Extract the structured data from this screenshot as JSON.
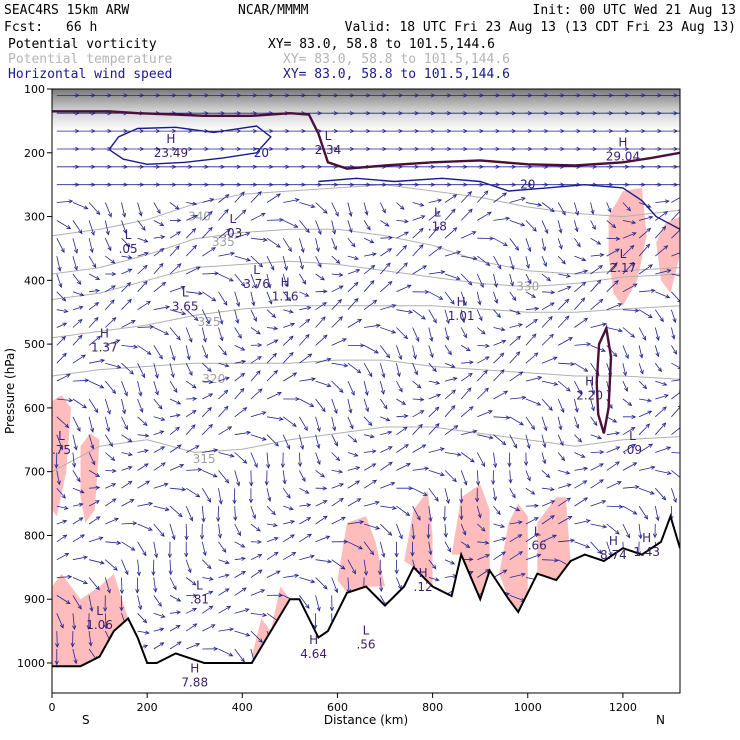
{
  "header": {
    "model": "SEAC4RS 15km ARW",
    "center": "NCAR/MMMM",
    "init": "Init: 00 UTC Wed 21 Aug 13",
    "fcst_label": "Fcst:",
    "fcst_value": "66 h",
    "valid": "Valid: 18 UTC Fri 23 Aug 13 (13 CDT Fri 23 Aug 13)"
  },
  "fields": [
    {
      "name": "Potential vorticity",
      "xy": "XY=  83.0, 58.8 to 101.5,144.6",
      "color": "#000000",
      "xy_color": "#000000"
    },
    {
      "name": "Potential temperature",
      "xy": "XY=  83.0, 58.8 to 101.5,144.6",
      "color": "#b4b4b4",
      "xy_color": "#b4b4b4"
    },
    {
      "name": "Horizontal wind speed",
      "xy": "XY=  83.0, 58.8 to 101.5,144.6",
      "color": "#1a1a8c",
      "xy_color": "#1a1a8c"
    }
  ],
  "colors": {
    "pv_shade": "#ffbcbc",
    "pv_line": "#4a0f3a",
    "theta": "#b0b0b0",
    "wind": "#1a1a8c",
    "vectors": "#23238f",
    "terrain": "#000000"
  },
  "chart_data": {
    "type": "cross-section",
    "xlabel": "Distance (km)",
    "ylabel": "Pressure (hPa)",
    "xlim": [
      0,
      1320
    ],
    "ylim": [
      1050,
      100
    ],
    "x_ticks": [
      0,
      200,
      400,
      600,
      800,
      1000,
      1200
    ],
    "y_ticks": [
      100,
      200,
      300,
      400,
      500,
      600,
      700,
      800,
      900,
      1000
    ],
    "endpoint_left": "S",
    "endpoint_right": "N",
    "terrain": [
      [
        0,
        1005
      ],
      [
        60,
        1005
      ],
      [
        100,
        990
      ],
      [
        130,
        950
      ],
      [
        160,
        930
      ],
      [
        180,
        960
      ],
      [
        200,
        1000
      ],
      [
        220,
        1000
      ],
      [
        260,
        985
      ],
      [
        320,
        1000
      ],
      [
        420,
        1000
      ],
      [
        460,
        950
      ],
      [
        500,
        900
      ],
      [
        520,
        900
      ],
      [
        560,
        960
      ],
      [
        580,
        950
      ],
      [
        620,
        890
      ],
      [
        660,
        880
      ],
      [
        700,
        910
      ],
      [
        740,
        880
      ],
      [
        760,
        850
      ],
      [
        800,
        880
      ],
      [
        840,
        895
      ],
      [
        860,
        830
      ],
      [
        900,
        900
      ],
      [
        920,
        855
      ],
      [
        960,
        900
      ],
      [
        980,
        920
      ],
      [
        1000,
        890
      ],
      [
        1020,
        860
      ],
      [
        1060,
        870
      ],
      [
        1090,
        840
      ],
      [
        1120,
        830
      ],
      [
        1160,
        840
      ],
      [
        1200,
        820
      ],
      [
        1240,
        830
      ],
      [
        1280,
        810
      ],
      [
        1300,
        770
      ],
      [
        1320,
        820
      ]
    ],
    "theta_contours": [
      {
        "label": "340",
        "points": [
          [
            0,
            330
          ],
          [
            100,
            320
          ],
          [
            200,
            305
          ],
          [
            300,
            280
          ],
          [
            400,
            265
          ],
          [
            500,
            260
          ],
          [
            600,
            255
          ],
          [
            700,
            250
          ],
          [
            800,
            260
          ],
          [
            900,
            270
          ],
          [
            1000,
            285
          ],
          [
            1100,
            295
          ],
          [
            1200,
            300
          ],
          [
            1320,
            290
          ]
        ],
        "label_at": [
          310,
          300
        ]
      },
      {
        "label": "335",
        "points": [
          [
            0,
            390
          ],
          [
            100,
            380
          ],
          [
            200,
            360
          ],
          [
            300,
            335
          ],
          [
            400,
            325
          ],
          [
            500,
            320
          ],
          [
            600,
            320
          ],
          [
            700,
            330
          ],
          [
            800,
            345
          ],
          [
            900,
            370
          ],
          [
            1000,
            385
          ],
          [
            1100,
            390
          ],
          [
            1200,
            385
          ],
          [
            1320,
            380
          ]
        ],
        "label_at": [
          360,
          340
        ]
      },
      {
        "label": "330",
        "points": [
          [
            0,
            430
          ],
          [
            100,
            420
          ],
          [
            200,
            400
          ],
          [
            300,
            380
          ],
          [
            400,
            375
          ],
          [
            500,
            370
          ],
          [
            600,
            375
          ],
          [
            700,
            385
          ],
          [
            800,
            395
          ],
          [
            900,
            405
          ],
          [
            1000,
            410
          ],
          [
            1100,
            405
          ],
          [
            1200,
            395
          ],
          [
            1320,
            390
          ]
        ],
        "label_at": [
          1000,
          410
        ]
      },
      {
        "label": "325",
        "points": [
          [
            0,
            490
          ],
          [
            100,
            480
          ],
          [
            200,
            470
          ],
          [
            300,
            455
          ],
          [
            400,
            445
          ],
          [
            500,
            440
          ],
          [
            600,
            440
          ],
          [
            700,
            440
          ],
          [
            800,
            440
          ],
          [
            900,
            445
          ],
          [
            1000,
            450
          ],
          [
            1100,
            450
          ],
          [
            1200,
            445
          ],
          [
            1320,
            440
          ]
        ],
        "label_at": [
          330,
          465
        ]
      },
      {
        "label": "320",
        "points": [
          [
            0,
            550
          ],
          [
            100,
            540
          ],
          [
            200,
            535
          ],
          [
            300,
            530
          ],
          [
            400,
            530
          ],
          [
            500,
            530
          ],
          [
            600,
            525
          ],
          [
            700,
            525
          ],
          [
            800,
            535
          ],
          [
            900,
            540
          ],
          [
            1000,
            545
          ],
          [
            1100,
            550
          ],
          [
            1200,
            550
          ],
          [
            1320,
            555
          ]
        ],
        "label_at": [
          340,
          555
        ]
      },
      {
        "label": "315",
        "points": [
          [
            0,
            700
          ],
          [
            50,
            680
          ],
          [
            100,
            660
          ],
          [
            200,
            650
          ],
          [
            300,
            670
          ],
          [
            400,
            665
          ],
          [
            500,
            650
          ],
          [
            600,
            640
          ],
          [
            700,
            630
          ],
          [
            800,
            630
          ],
          [
            900,
            640
          ],
          [
            1000,
            650
          ],
          [
            1100,
            660
          ],
          [
            1200,
            650
          ],
          [
            1320,
            645
          ]
        ],
        "label_at": [
          320,
          680
        ]
      }
    ],
    "wind_contours": [
      {
        "label": "20",
        "points": [
          [
            120,
            195
          ],
          [
            140,
            175
          ],
          [
            180,
            162
          ],
          [
            260,
            160
          ],
          [
            340,
            168
          ],
          [
            430,
            158
          ],
          [
            460,
            175
          ],
          [
            430,
            200
          ],
          [
            360,
            208
          ],
          [
            280,
            215
          ],
          [
            200,
            218
          ],
          [
            150,
            210
          ],
          [
            120,
            195
          ]
        ],
        "label_at": [
          440,
          200
        ]
      },
      {
        "label": "20",
        "points": [
          [
            560,
            245
          ],
          [
            640,
            240
          ],
          [
            720,
            245
          ],
          [
            820,
            240
          ],
          [
            900,
            245
          ],
          [
            960,
            260
          ],
          [
            1040,
            255
          ],
          [
            1120,
            250
          ],
          [
            1200,
            255
          ],
          [
            1240,
            275
          ],
          [
            1270,
            300
          ],
          [
            1320,
            320
          ]
        ],
        "label_at": [
          1000,
          250
        ]
      }
    ],
    "pv_contour_dyn": {
      "points": [
        [
          0,
          135
        ],
        [
          60,
          135
        ],
        [
          120,
          135
        ],
        [
          180,
          138
        ],
        [
          260,
          140
        ],
        [
          320,
          142
        ],
        [
          420,
          142
        ],
        [
          500,
          138
        ],
        [
          540,
          140
        ],
        [
          560,
          170
        ],
        [
          580,
          215
        ],
        [
          620,
          225
        ],
        [
          700,
          220
        ],
        [
          800,
          215
        ],
        [
          900,
          212
        ],
        [
          1000,
          218
        ],
        [
          1100,
          220
        ],
        [
          1200,
          215
        ],
        [
          1260,
          208
        ],
        [
          1320,
          200
        ]
      ]
    },
    "pv_shaded": [
      {
        "points": [
          [
            1170,
            300
          ],
          [
            1200,
            260
          ],
          [
            1240,
            255
          ],
          [
            1250,
            330
          ],
          [
            1230,
            400
          ],
          [
            1200,
            440
          ],
          [
            1180,
            420
          ],
          [
            1170,
            360
          ]
        ]
      },
      {
        "points": [
          [
            1270,
            340
          ],
          [
            1290,
            310
          ],
          [
            1320,
            300
          ],
          [
            1320,
            360
          ],
          [
            1300,
            420
          ],
          [
            1280,
            400
          ]
        ]
      },
      {
        "points": [
          [
            0,
            590
          ],
          [
            20,
            580
          ],
          [
            40,
            600
          ],
          [
            30,
            700
          ],
          [
            10,
            770
          ],
          [
            0,
            760
          ]
        ]
      },
      {
        "points": [
          [
            60,
            660
          ],
          [
            80,
            640
          ],
          [
            100,
            650
          ],
          [
            90,
            760
          ],
          [
            70,
            780
          ],
          [
            60,
            740
          ]
        ]
      },
      {
        "points": [
          [
            0,
            880
          ],
          [
            20,
            860
          ],
          [
            60,
            900
          ],
          [
            100,
            880
          ],
          [
            130,
            860
          ],
          [
            160,
            930
          ],
          [
            130,
            950
          ],
          [
            100,
            990
          ],
          [
            60,
            1005
          ],
          [
            0,
            1005
          ]
        ]
      },
      {
        "points": [
          [
            420,
            990
          ],
          [
            440,
            930
          ],
          [
            460,
            950
          ],
          [
            480,
            880
          ],
          [
            500,
            900
          ],
          [
            500,
            950
          ],
          [
            460,
            990
          ]
        ]
      },
      {
        "points": [
          [
            600,
            870
          ],
          [
            620,
            780
          ],
          [
            660,
            770
          ],
          [
            680,
            810
          ],
          [
            700,
            880
          ],
          [
            660,
            880
          ],
          [
            620,
            890
          ]
        ]
      },
      {
        "points": [
          [
            740,
            840
          ],
          [
            760,
            760
          ],
          [
            790,
            730
          ],
          [
            800,
            800
          ],
          [
            800,
            880
          ],
          [
            760,
            850
          ]
        ]
      },
      {
        "points": [
          [
            840,
            830
          ],
          [
            860,
            740
          ],
          [
            900,
            720
          ],
          [
            920,
            760
          ],
          [
            920,
            855
          ],
          [
            900,
            900
          ],
          [
            860,
            830
          ]
        ]
      },
      {
        "points": [
          [
            940,
            860
          ],
          [
            960,
            780
          ],
          [
            980,
            750
          ],
          [
            1000,
            770
          ],
          [
            1000,
            890
          ],
          [
            980,
            920
          ],
          [
            960,
            900
          ]
        ]
      },
      {
        "points": [
          [
            1020,
            780
          ],
          [
            1060,
            740
          ],
          [
            1080,
            740
          ],
          [
            1090,
            840
          ],
          [
            1060,
            870
          ],
          [
            1020,
            860
          ]
        ]
      }
    ],
    "pv_closed": {
      "points": [
        [
          1145,
          560
        ],
        [
          1150,
          500
        ],
        [
          1165,
          475
        ],
        [
          1175,
          520
        ],
        [
          1170,
          600
        ],
        [
          1160,
          640
        ],
        [
          1148,
          610
        ]
      ]
    },
    "extrema": [
      {
        "type": "H",
        "value": "23.49",
        "x": 250,
        "p": 185
      },
      {
        "type": "L",
        "value": "2.34",
        "x": 580,
        "p": 180
      },
      {
        "type": "H",
        "value": "29.04",
        "x": 1200,
        "p": 190
      },
      {
        "type": "L",
        "value": ".03",
        "x": 380,
        "p": 310
      },
      {
        "type": "L",
        "value": ".18",
        "x": 810,
        "p": 300
      },
      {
        "type": "L",
        "value": ".05",
        "x": 160,
        "p": 335
      },
      {
        "type": "L",
        "value": "2.17",
        "x": 1200,
        "p": 365
      },
      {
        "type": "L",
        "value": "3.76",
        "x": 430,
        "p": 390
      },
      {
        "type": "H",
        "value": "1.16",
        "x": 490,
        "p": 410
      },
      {
        "type": "L",
        "value": "3.65",
        "x": 280,
        "p": 425
      },
      {
        "type": "H",
        "value": "1.01",
        "x": 860,
        "p": 440
      },
      {
        "type": "H",
        "value": "1.37",
        "x": 110,
        "p": 490
      },
      {
        "type": "H",
        "value": "2.20",
        "x": 1130,
        "p": 565
      },
      {
        "type": "L",
        "value": ".75",
        "x": 20,
        "p": 650
      },
      {
        "type": "L",
        "value": ".09",
        "x": 1220,
        "p": 650
      },
      {
        "type": "L",
        "value": ".66",
        "x": 1020,
        "p": 800
      },
      {
        "type": "H",
        "value": "8.74",
        "x": 1180,
        "p": 815
      },
      {
        "type": "H",
        "value": "1.43",
        "x": 1250,
        "p": 810
      },
      {
        "type": "H",
        "value": ".12",
        "x": 780,
        "p": 865
      },
      {
        "type": "L",
        "value": ".81",
        "x": 310,
        "p": 885
      },
      {
        "type": "L",
        "value": "1.06",
        "x": 100,
        "p": 925
      },
      {
        "type": "L",
        "value": ".56",
        "x": 660,
        "p": 955
      },
      {
        "type": "H",
        "value": "4.64",
        "x": 550,
        "p": 970
      },
      {
        "type": "H",
        "value": "7.88",
        "x": 300,
        "p": 1015
      }
    ]
  }
}
